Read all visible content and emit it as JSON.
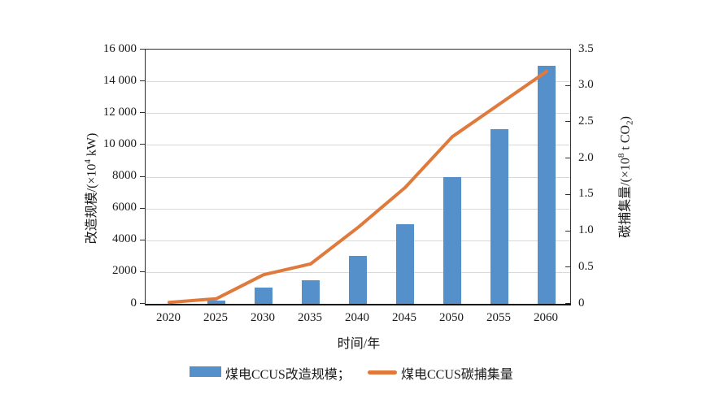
{
  "chart_data": {
    "type": "bar",
    "subtype": "bar+line dual-axis combo",
    "categories": [
      "2020",
      "2025",
      "2030",
      "2035",
      "2040",
      "2045",
      "2050",
      "2055",
      "2060"
    ],
    "series": [
      {
        "name": "煤电CCUS改造规模；",
        "type": "bar",
        "axis": "left",
        "color": "#5590CB",
        "values": [
          0,
          200,
          1000,
          1500,
          3000,
          5000,
          8000,
          11000,
          15000
        ]
      },
      {
        "name": "煤电CCUS碳捕集量",
        "type": "line",
        "axis": "right",
        "color": "#E0793C",
        "values": [
          0.02,
          0.07,
          0.4,
          0.55,
          1.05,
          1.6,
          2.3,
          2.75,
          3.2
        ]
      }
    ],
    "x_axis": {
      "title": "时间/年"
    },
    "left_axis": {
      "title_prefix": "改造规模/(×10",
      "title_sup": "4",
      "title_suffix": " kW)",
      "max": 16000,
      "ticks": [
        {
          "label": "0",
          "value": 0
        },
        {
          "label": "2000",
          "value": 2000
        },
        {
          "label": "4000",
          "value": 4000
        },
        {
          "label": "6000",
          "value": 6000
        },
        {
          "label": "8000",
          "value": 8000
        },
        {
          "label": "10 000",
          "value": 10000
        },
        {
          "label": "12 000",
          "value": 12000
        },
        {
          "label": "14 000",
          "value": 14000
        },
        {
          "label": "16 000",
          "value": 16000
        }
      ]
    },
    "right_axis": {
      "title_prefix": "碳捕集量/(×10",
      "title_sup": "8",
      "title_mid": " t CO",
      "title_sub": "2",
      "title_suffix": ")",
      "max": 3.5,
      "ticks": [
        {
          "label": "0",
          "value": 0
        },
        {
          "label": "0.5",
          "value": 0.5
        },
        {
          "label": "1.0",
          "value": 1.0
        },
        {
          "label": "1.5",
          "value": 1.5
        },
        {
          "label": "2.0",
          "value": 2.0
        },
        {
          "label": "2.5",
          "value": 2.5
        },
        {
          "label": "3.0",
          "value": 3.0
        },
        {
          "label": "3.5",
          "value": 3.5
        }
      ]
    },
    "legend_position": "bottom-center",
    "grid": "horizontal"
  },
  "colors": {
    "bar": "#5590CB",
    "line": "#E0793C",
    "grid": "#D9D9D9",
    "axis": "#2E2E2E",
    "background": "#FFFFFF"
  }
}
